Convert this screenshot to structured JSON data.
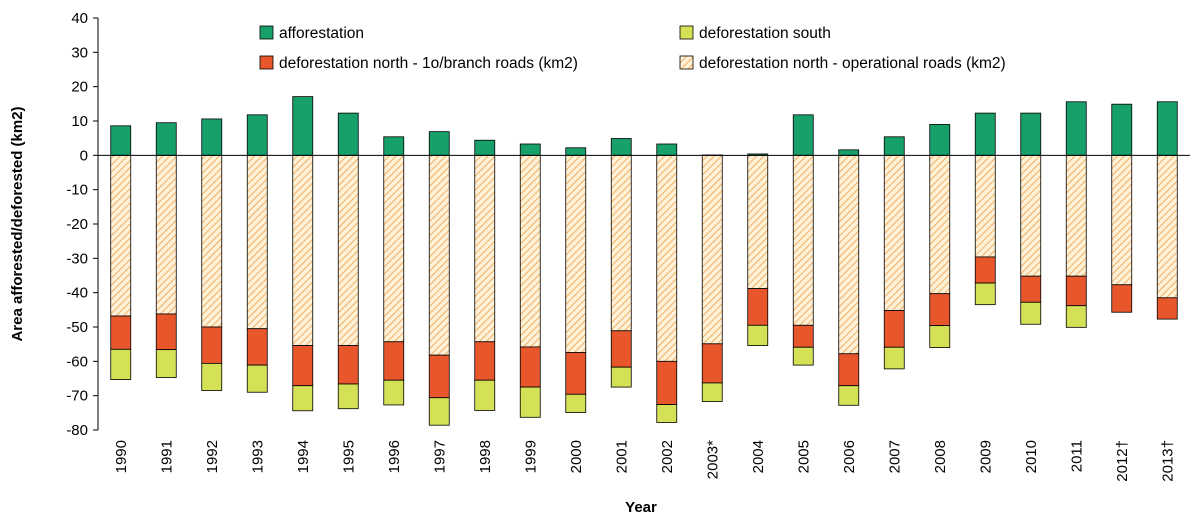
{
  "chart_data": {
    "type": "bar",
    "stacked": true,
    "title": "",
    "xlabel": "Year",
    "ylabel": "Area afforested/deforested (km2)",
    "ylim": [
      -80,
      40
    ],
    "yticks": [
      40,
      30,
      20,
      10,
      0,
      -10,
      -20,
      -30,
      -40,
      -50,
      -60,
      -70,
      -80
    ],
    "grid": false,
    "legend_position": "top (two columns, inside plot)",
    "categories": [
      "1990",
      "1991",
      "1992",
      "1993",
      "1994",
      "1995",
      "1996",
      "1997",
      "1998",
      "1999",
      "2000",
      "2001",
      "2002",
      "2003*",
      "2004",
      "2005",
      "2006",
      "2007",
      "2008",
      "2009",
      "2010",
      "2011",
      "2012†",
      "2013†"
    ],
    "series": [
      {
        "name": "afforestation",
        "color": "#18a06a",
        "values": [
          8.6,
          9.5,
          10.6,
          11.8,
          17.1,
          12.3,
          5.4,
          6.9,
          4.4,
          3.3,
          2.2,
          4.9,
          3.3,
          0.1,
          0.4,
          11.8,
          1.6,
          5.4,
          9.0,
          12.3,
          12.3,
          15.6,
          14.9,
          15.6
        ]
      },
      {
        "name": "deforestation north - operational roads (km2)",
        "color": "#ffe9c4",
        "pattern": "hatched",
        "values": [
          -46.8,
          -46.2,
          -50.0,
          -50.5,
          -55.4,
          -55.4,
          -54.3,
          -58.2,
          -54.3,
          -55.8,
          -57.4,
          -51.1,
          -60.0,
          -54.9,
          -38.8,
          -49.5,
          -57.8,
          -45.2,
          -40.3,
          -29.6,
          -35.2,
          -35.2,
          -37.7,
          -41.5
        ]
      },
      {
        "name": "deforestation north - 1o/branch roads (km2)",
        "color": "#e8562c",
        "values": [
          -9.7,
          -10.4,
          -10.6,
          -10.6,
          -11.7,
          -11.2,
          -11.2,
          -12.4,
          -11.2,
          -11.7,
          -12.2,
          -10.6,
          -12.6,
          -11.4,
          -10.7,
          -6.4,
          -9.3,
          -10.7,
          -9.3,
          -7.6,
          -7.6,
          -8.6,
          -8.0,
          -6.2
        ]
      },
      {
        "name": "deforestation south",
        "color": "#d4e157",
        "values": [
          -8.8,
          -8.1,
          -7.9,
          -7.9,
          -7.3,
          -7.2,
          -7.2,
          -8.0,
          -8.8,
          -8.8,
          -5.3,
          -5.8,
          -5.2,
          -5.4,
          -5.9,
          -5.2,
          -5.7,
          -6.3,
          -6.4,
          -6.3,
          -6.4,
          -6.3,
          0,
          0
        ]
      }
    ],
    "legend": [
      {
        "name": "afforestation",
        "swatch": "#18a06a",
        "hatched": false
      },
      {
        "name": "deforestation south",
        "swatch": "#d4e157",
        "hatched": false
      },
      {
        "name": "deforestation north - 1o/branch roads (km2)",
        "swatch": "#e8562c",
        "hatched": false
      },
      {
        "name": "deforestation north - operational roads (km2)",
        "swatch": "#ffe9c4",
        "hatched": true
      }
    ]
  }
}
